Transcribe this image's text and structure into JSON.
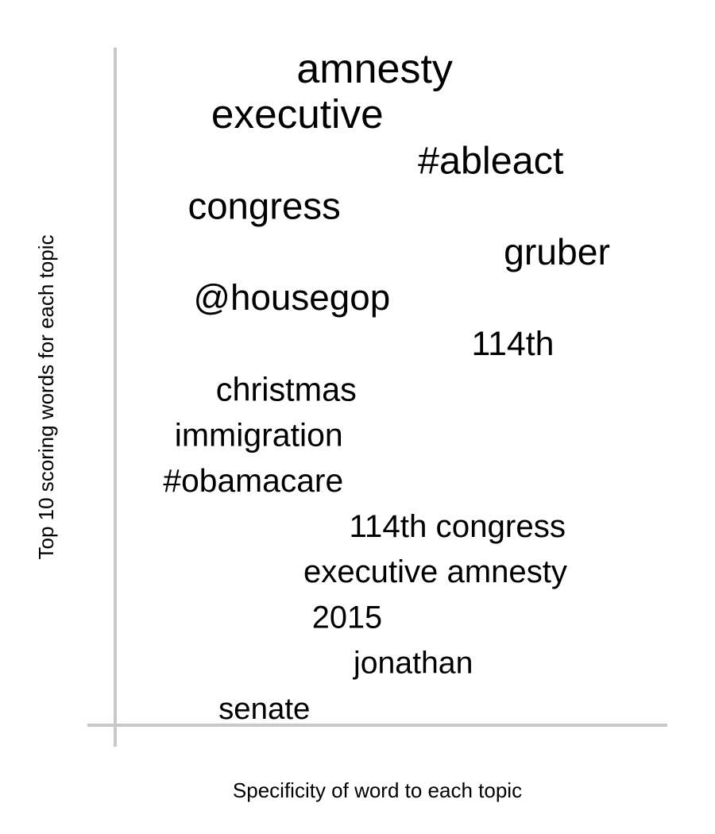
{
  "chart_data": {
    "type": "scatter",
    "title": "",
    "xlabel": "Specificity of word to each topic",
    "ylabel": "Top 10 scoring words for each topic",
    "grid": false,
    "legend": "none",
    "colors": {
      "axis": "#c8c8c8",
      "text": "#000000"
    },
    "words": [
      {
        "text": "amnesty",
        "specificity": 0.47,
        "rank": 1,
        "weight": 1.0
      },
      {
        "text": "executive",
        "specificity": 0.33,
        "rank": 2,
        "weight": 0.97
      },
      {
        "text": "#ableact",
        "specificity": 0.68,
        "rank": 3,
        "weight": 0.84
      },
      {
        "text": "congress",
        "specificity": 0.27,
        "rank": 4,
        "weight": 0.79
      },
      {
        "text": "gruber",
        "specificity": 0.8,
        "rank": 5,
        "weight": 0.74
      },
      {
        "text": "@housegop",
        "specificity": 0.32,
        "rank": 6,
        "weight": 0.72
      },
      {
        "text": "114th",
        "specificity": 0.72,
        "rank": 7,
        "weight": 0.58
      },
      {
        "text": "christmas",
        "specificity": 0.31,
        "rank": 8,
        "weight": 0.52
      },
      {
        "text": "immigration",
        "specificity": 0.26,
        "rank": 9,
        "weight": 0.5
      },
      {
        "text": "#obamacare",
        "specificity": 0.25,
        "rank": 10,
        "weight": 0.49
      },
      {
        "text": "114th congress",
        "specificity": 0.62,
        "rank": 11,
        "weight": 0.47
      },
      {
        "text": "executive amnesty",
        "specificity": 0.58,
        "rank": 12,
        "weight": 0.46
      },
      {
        "text": "2015",
        "specificity": 0.42,
        "rank": 13,
        "weight": 0.44
      },
      {
        "text": "jonathan",
        "specificity": 0.54,
        "rank": 14,
        "weight": 0.42
      },
      {
        "text": "senate",
        "specificity": 0.27,
        "rank": 15,
        "weight": 0.38
      }
    ]
  }
}
